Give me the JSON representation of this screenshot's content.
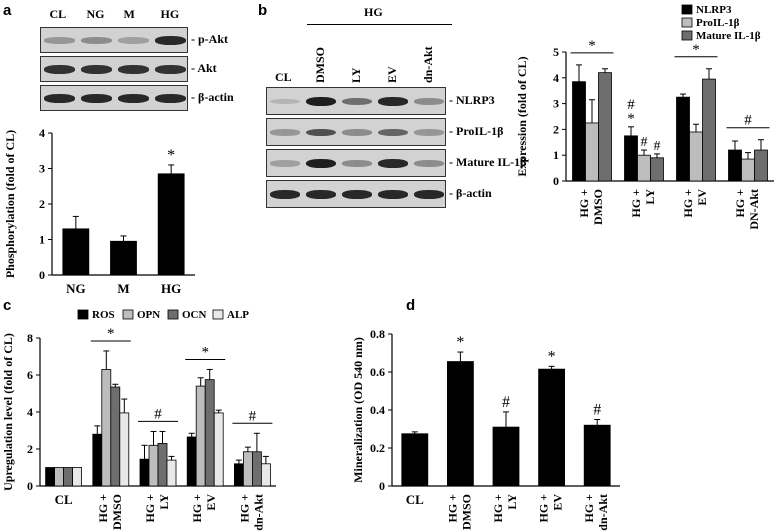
{
  "panels": {
    "a": {
      "label": "a",
      "lanes": [
        "CL",
        "NG",
        "M",
        "HG"
      ],
      "blots": [
        "p-Akt",
        "Akt",
        "β-actin"
      ],
      "blot_intensity": [
        [
          0.35,
          0.4,
          0.3,
          0.9
        ],
        [
          0.85,
          0.85,
          0.85,
          0.85
        ],
        [
          0.9,
          0.9,
          0.9,
          0.9
        ]
      ]
    },
    "b": {
      "label": "b",
      "group_label": "HG",
      "lanes": [
        "CL",
        "DMSO",
        "LY",
        "EV",
        "dn-Akt"
      ],
      "blots": [
        "NLRP3",
        "ProIL-1β",
        "Mature IL-1β",
        "β-actin"
      ],
      "blot_intensity": [
        [
          0.2,
          0.95,
          0.55,
          0.9,
          0.4
        ],
        [
          0.35,
          0.7,
          0.4,
          0.6,
          0.35
        ],
        [
          0.3,
          0.95,
          0.4,
          0.9,
          0.4
        ],
        [
          0.9,
          0.9,
          0.9,
          0.9,
          0.9
        ]
      ]
    },
    "c": {
      "label": "c"
    },
    "d": {
      "label": "d"
    }
  },
  "colors": {
    "black": "#000000",
    "light_gray": "#bdbdbd",
    "dark_gray": "#6e6e6e",
    "very_light": "#e8e8e8"
  },
  "chart_data": [
    {
      "id": "a",
      "type": "bar",
      "categories": [
        "NG",
        "M",
        "HG"
      ],
      "values": [
        1.3,
        0.95,
        2.85
      ],
      "errors": [
        0.35,
        0.15,
        0.25
      ],
      "annotations": [
        "",
        "",
        "*"
      ],
      "ylabel": "Phosphorylation  (fold of CL)",
      "ylim": [
        0,
        4
      ],
      "yticks": [
        "0",
        "1",
        "2",
        "3",
        "4"
      ]
    },
    {
      "id": "b",
      "type": "bar",
      "categories": [
        [
          "HG +",
          "DMSO"
        ],
        [
          "HG +",
          "LY"
        ],
        [
          "HG +",
          "EV"
        ],
        [
          "HG +",
          "DN-Akt"
        ]
      ],
      "series": [
        {
          "name": "NLRP3",
          "values": [
            3.85,
            1.75,
            3.25,
            1.2
          ],
          "errors": [
            0.65,
            0.35,
            0.12,
            0.35
          ]
        },
        {
          "name": "ProIL-1β",
          "values": [
            2.25,
            1.0,
            1.9,
            0.85
          ],
          "errors": [
            0.9,
            0.2,
            0.3,
            0.25
          ]
        },
        {
          "name": "Mature IL-1β",
          "values": [
            4.2,
            0.9,
            3.95,
            1.2
          ],
          "errors": [
            0.15,
            0.15,
            0.4,
            0.4
          ]
        }
      ],
      "group_marks": [
        "*",
        "#\n*",
        "*",
        "#"
      ],
      "bar_marks": [
        [
          "",
          "",
          ""
        ],
        [
          "",
          "#",
          "#"
        ],
        [
          "",
          "",
          ""
        ],
        [
          "",
          "",
          ""
        ]
      ],
      "ylabel": "Expression  (fold of CL)",
      "ylim": [
        0,
        5
      ],
      "yticks": [
        "0",
        "1",
        "2",
        "3",
        "4",
        "5"
      ]
    },
    {
      "id": "c",
      "type": "bar",
      "categories": [
        [
          "CL"
        ],
        [
          "HG +",
          "DMSO"
        ],
        [
          "HG +",
          "LY"
        ],
        [
          "HG +",
          "EV"
        ],
        [
          "HG +",
          "dn-Akt"
        ]
      ],
      "series": [
        {
          "name": "ROS",
          "values": [
            1.0,
            2.8,
            1.45,
            2.65,
            1.2
          ],
          "errors": [
            0,
            0.45,
            0.75,
            0.2,
            0.2
          ]
        },
        {
          "name": "OPN",
          "values": [
            1.0,
            6.3,
            2.2,
            5.4,
            1.85
          ],
          "errors": [
            0,
            1.0,
            0.75,
            0.45,
            0.25
          ]
        },
        {
          "name": "OCN",
          "values": [
            1.0,
            5.35,
            2.3,
            5.75,
            1.85
          ],
          "errors": [
            0,
            0.15,
            0.65,
            0.55,
            1.0
          ]
        },
        {
          "name": "ALP",
          "values": [
            1.0,
            3.95,
            1.4,
            3.95,
            1.2
          ],
          "errors": [
            0,
            0.75,
            0.2,
            0.15,
            0.4
          ]
        }
      ],
      "group_marks": [
        "",
        "*",
        "#",
        "*",
        "#"
      ],
      "ylabel": "Upregulation level  (fold of CL)",
      "ylim": [
        0,
        8
      ],
      "yticks": [
        "0",
        "2",
        "4",
        "6",
        "8"
      ]
    },
    {
      "id": "d",
      "type": "bar",
      "categories": [
        [
          "CL"
        ],
        [
          "HG +",
          "DMSO"
        ],
        [
          "HG +",
          "LY"
        ],
        [
          "HG +",
          "EV"
        ],
        [
          "HG +",
          "dn-Akt"
        ]
      ],
      "values": [
        0.275,
        0.655,
        0.31,
        0.615,
        0.32
      ],
      "errors": [
        0.01,
        0.05,
        0.08,
        0.015,
        0.03
      ],
      "annotations": [
        "",
        "*",
        "#",
        "*",
        "#"
      ],
      "ylabel": "Mineralization (OD 540 nm)",
      "ylim": [
        0,
        0.8
      ],
      "yticks": [
        "0",
        "0.2",
        "0.4",
        "0.6",
        "0.8"
      ]
    }
  ]
}
